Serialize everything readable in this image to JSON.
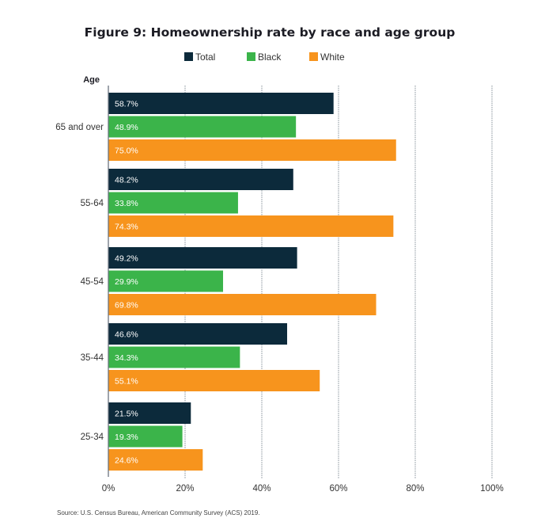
{
  "chart_data": {
    "type": "bar",
    "orientation": "horizontal",
    "title": "Figure 9: Homeownership rate by race and age group",
    "ylabel": "Age",
    "xlabel": "",
    "categories": [
      "65 and over",
      "55-64",
      "45-54",
      "35-44",
      "25-34"
    ],
    "series": [
      {
        "name": "Total",
        "color": "#0c2a3b",
        "values": [
          58.7,
          48.2,
          49.2,
          46.6,
          21.5
        ],
        "labels": [
          "58.7%",
          "48.2%",
          "49.2%",
          "46.6%",
          "21.5%"
        ]
      },
      {
        "name": "Black",
        "color": "#3bb44a",
        "values": [
          48.9,
          33.8,
          29.9,
          34.3,
          19.3
        ],
        "labels": [
          "48.9%",
          "33.8%",
          "29.9%",
          "34.3%",
          "19.3%"
        ]
      },
      {
        "name": "White",
        "color": "#f7941d",
        "values": [
          75.0,
          74.3,
          69.8,
          55.1,
          24.6
        ],
        "labels": [
          "75.0%",
          "74.3%",
          "69.8%",
          "55.1%",
          "24.6%"
        ]
      }
    ],
    "xlim": [
      0,
      100
    ],
    "xticks": [
      0,
      20,
      40,
      60,
      80,
      100
    ],
    "xtick_labels": [
      "0%",
      "20%",
      "40%",
      "60%",
      "80%",
      "100%"
    ],
    "grid": true,
    "legend_position": "top-center",
    "source": "Source: U.S. Census Bureau, American Community Survey (ACS) 2019."
  }
}
